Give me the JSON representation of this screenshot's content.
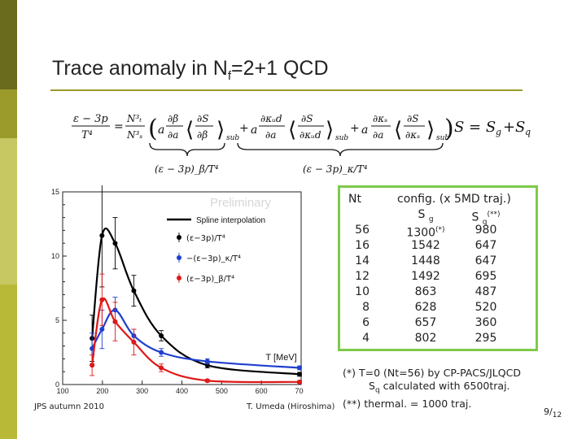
{
  "title": {
    "text": "Trace anomaly in N",
    "sub": "f",
    "rest": "=2+1 QCD"
  },
  "equation": {
    "lhs": "(ε − 3p)/T⁴ = (N_t³/N_s³) ⟨∂β/∂a · ∂S/∂β⟩_sub + a ∂κ_ud/∂a ⟨∂S/∂κ_ud⟩_sub + a ∂κ_s/∂a ⟨∂S/∂κ_s⟩_sub",
    "rhs": "S = S_g + S_q",
    "brace_gluon": "(ε − 3p)_β/T⁴",
    "brace_quark": "(ε − 3p)_κ/T⁴"
  },
  "plot": {
    "watermark": "Preliminary",
    "legend": {
      "spline": "Spline interpolation",
      "total": "(ε−3p)/T⁴",
      "quark": "−(ε−3p)_κ/T⁴",
      "gluon": "(ε−3p)_β/T⁴"
    },
    "xlabel": "T [MeV]",
    "colors": {
      "total": "#000000",
      "quark": "#1f3fd0",
      "gluon": "#e01818"
    }
  },
  "chart_data": {
    "type": "scatter",
    "title": "",
    "xlabel": "T [MeV]",
    "ylabel": "",
    "xlim": [
      100,
      700
    ],
    "ylim": [
      0,
      15
    ],
    "x_ticks": [
      "100",
      "200",
      "300",
      "400",
      "500",
      "600",
      "700"
    ],
    "y_ticks": [
      "0",
      "5",
      "10",
      "15"
    ],
    "series": [
      {
        "name": "(ε−3p)/T⁴",
        "color": "#000000",
        "x": [
          174,
          199,
          232,
          279,
          348,
          464,
          696
        ],
        "y": [
          3.6,
          11.6,
          11.0,
          7.3,
          3.8,
          1.5,
          0.8
        ],
        "err": [
          1.8,
          4.0,
          2.0,
          1.2,
          0.4,
          0.2,
          0.15
        ]
      },
      {
        "name": "−(ε−3p)_κ/T⁴",
        "color": "#1f3fd0",
        "x": [
          174,
          199,
          232,
          279,
          348,
          464,
          696
        ],
        "y": [
          2.8,
          4.3,
          5.8,
          3.8,
          2.5,
          1.8,
          1.3
        ],
        "err": [
          1.2,
          1.5,
          1.0,
          0.5,
          0.3,
          0.2,
          0.15
        ]
      },
      {
        "name": "(ε−3p)_β/T⁴",
        "color": "#e01818",
        "x": [
          174,
          199,
          232,
          279,
          348,
          464,
          696
        ],
        "y": [
          1.5,
          6.6,
          4.9,
          3.3,
          1.3,
          0.3,
          0.2
        ],
        "err": [
          0.8,
          2.0,
          1.5,
          1.0,
          0.3,
          0.1,
          0.1
        ]
      }
    ]
  },
  "table": {
    "header_nt": "Nt",
    "header_config": "config. (x 5MD traj.)",
    "header_sg": "S",
    "header_sg_sub": "g",
    "header_sq": "S",
    "header_sq_sub": "q",
    "header_sq_mark": "(**)",
    "rows": [
      {
        "nt": "56",
        "sg": "1300",
        "sg_mark": "(*)",
        "sq": "980"
      },
      {
        "nt": "16",
        "sg": "1542",
        "sg_mark": "",
        "sq": "647"
      },
      {
        "nt": "14",
        "sg": "1448",
        "sg_mark": "",
        "sq": "647"
      },
      {
        "nt": "12",
        "sg": "1492",
        "sg_mark": "",
        "sq": "695"
      },
      {
        "nt": "10",
        "sg": "863",
        "sg_mark": "",
        "sq": "487"
      },
      {
        "nt": "8",
        "sg": "628",
        "sg_mark": "",
        "sq": "520"
      },
      {
        "nt": "6",
        "sg": "657",
        "sg_mark": "",
        "sq": "360"
      },
      {
        "nt": "4",
        "sg": "802",
        "sg_mark": "",
        "sq": "295"
      }
    ]
  },
  "notes": {
    "line1": "(*) T=0 (Nt=56) by CP-PACS/JLQCD",
    "line2_a": "S",
    "line2_sub": "q",
    "line2_b": " calculated with 6500traj.",
    "line3": "(**)   thermal. = 1000 traj."
  },
  "footer": {
    "left": "JPS autumn 2010",
    "middle": "T. Umeda (Hiroshima)",
    "page": "9",
    "total": "12"
  }
}
